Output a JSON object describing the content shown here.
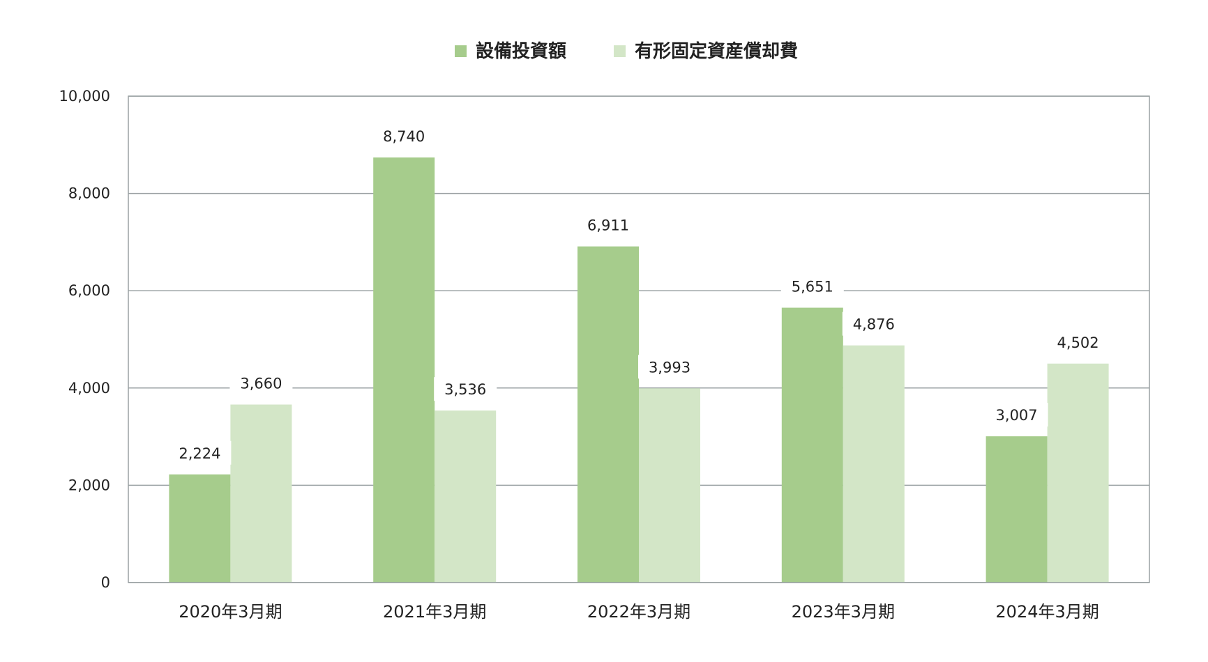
{
  "chart_data": {
    "type": "bar",
    "categories": [
      "2020年3月期",
      "2021年3月期",
      "2022年3月期",
      "2023年3月期",
      "2024年3月期"
    ],
    "series": [
      {
        "name": "設備投資額",
        "values": [
          2224,
          8740,
          6911,
          5651,
          3007
        ],
        "color": "#a6cc8c"
      },
      {
        "name": "有形固定資産償却費",
        "values": [
          3660,
          3536,
          3993,
          4876,
          4502
        ],
        "color": "#d3e6c7"
      }
    ],
    "data_labels": [
      [
        "2,224",
        "8,740",
        "6,911",
        "5,651",
        "3,007"
      ],
      [
        "3,660",
        "3,536",
        "3,993",
        "4,876",
        "4,502"
      ]
    ],
    "y_ticks": [
      "0",
      "2,000",
      "4,000",
      "6,000",
      "8,000",
      "10,000"
    ],
    "ylim": [
      0,
      10000
    ],
    "grid": true,
    "legend_position": "top-center",
    "grid_color": "#9aa1a3",
    "title": "",
    "xlabel": "",
    "ylabel": ""
  }
}
